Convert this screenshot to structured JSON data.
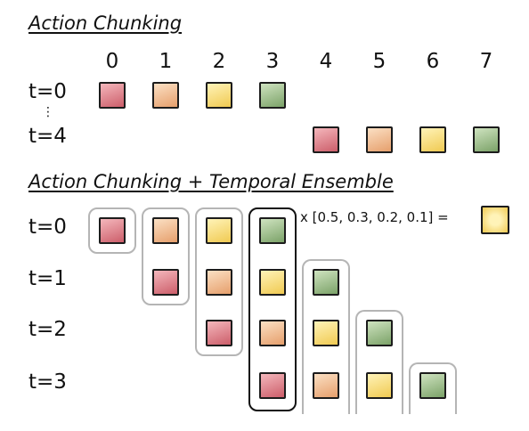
{
  "colors": {
    "red": [
      "#f4b7bc",
      "#cc5e6a"
    ],
    "orange": [
      "#fbe0c4",
      "#e69f6c"
    ],
    "yellow": [
      "#fff3b8",
      "#f0ca52"
    ],
    "green": [
      "#cfe3c0",
      "#7ba268"
    ],
    "group_border": "#b5b5b5",
    "highlight_border": "#111111"
  },
  "section1": {
    "title": "Action Chunking",
    "indices": [
      "0",
      "1",
      "2",
      "3",
      "4",
      "5",
      "6",
      "7"
    ],
    "rows": [
      {
        "label": "t=0",
        "start": 0,
        "colors": [
          "red",
          "orange",
          "yellow",
          "green"
        ]
      },
      {
        "label": "t=4",
        "start": 4,
        "colors": [
          "red",
          "orange",
          "yellow",
          "green"
        ]
      }
    ],
    "ellipsis": "⋮"
  },
  "section2": {
    "title": "Action Chunking + Temporal Ensemble",
    "row_labels": [
      "t=0",
      "t=1",
      "t=2",
      "t=3"
    ],
    "rows": [
      {
        "label": "t=0",
        "start": 0,
        "colors": [
          "red",
          "orange",
          "yellow",
          "green"
        ]
      },
      {
        "label": "t=1",
        "start": 1,
        "colors": [
          "red",
          "orange",
          "yellow",
          "green"
        ]
      },
      {
        "label": "t=2",
        "start": 2,
        "colors": [
          "red",
          "orange",
          "yellow",
          "green"
        ]
      },
      {
        "label": "t=3",
        "start": 3,
        "colors": [
          "red",
          "orange",
          "yellow",
          "green"
        ]
      }
    ],
    "highlight_column": 3,
    "formula": "x [0.5, 0.3, 0.2, 0.1] =",
    "result_color": "yellow"
  }
}
